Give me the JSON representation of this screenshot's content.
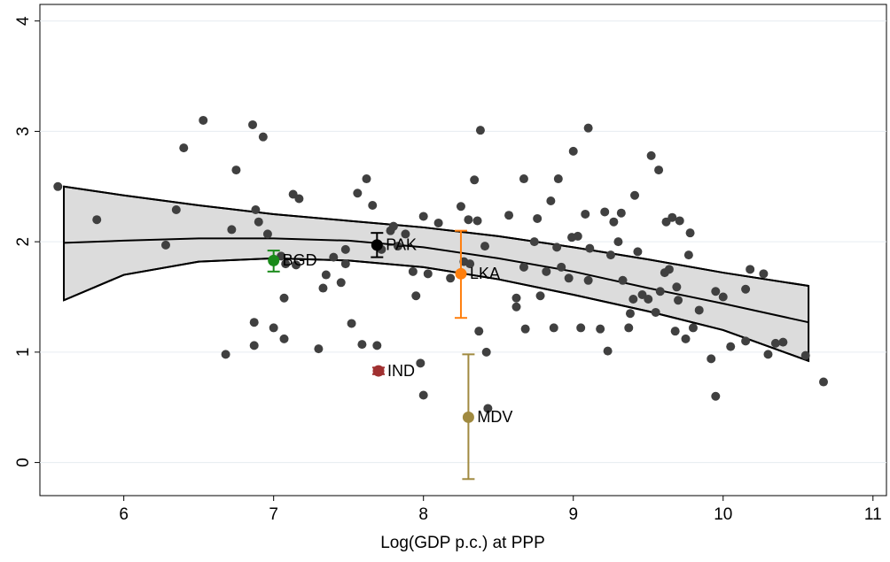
{
  "chart_data": {
    "type": "scatter",
    "xlabel": "Log(GDP p.c.) at PPP",
    "xlim": [
      5.44,
      11.09
    ],
    "ylim": [
      -0.3,
      4.15
    ],
    "xticks": [
      6,
      7,
      8,
      9,
      10,
      11
    ],
    "yticks": [
      0,
      1,
      2,
      3,
      4
    ],
    "grid": true,
    "points": {
      "color": "#404040",
      "x": [
        5.56,
        5.82,
        6.28,
        6.35,
        6.4,
        6.53,
        6.68,
        6.72,
        6.75,
        6.86,
        6.87,
        6.87,
        6.88,
        6.9,
        6.93,
        6.96,
        7.0,
        7.05,
        7.07,
        7.07,
        7.08,
        7.13,
        7.17,
        7.15,
        7.3,
        7.33,
        7.35,
        7.4,
        7.45,
        7.48,
        7.48,
        7.52,
        7.56,
        7.59,
        7.62,
        7.69,
        7.66,
        7.72,
        7.78,
        7.8,
        7.83,
        7.88,
        7.93,
        7.95,
        7.98,
        8.0,
        8.0,
        8.03,
        8.1,
        8.18,
        8.25,
        8.27,
        8.3,
        8.31,
        8.34,
        8.36,
        8.37,
        8.38,
        8.41,
        8.42,
        8.43,
        8.57,
        8.62,
        8.62,
        8.67,
        8.68,
        8.67,
        8.74,
        8.76,
        8.78,
        8.82,
        8.85,
        8.87,
        8.89,
        8.9,
        8.92,
        8.97,
        8.99,
        9.0,
        9.03,
        9.05,
        9.08,
        9.1,
        9.1,
        9.11,
        9.18,
        9.21,
        9.23,
        9.25,
        9.27,
        9.3,
        9.32,
        9.33,
        9.37,
        9.38,
        9.4,
        9.41,
        9.43,
        9.46,
        9.5,
        9.52,
        9.55,
        9.57,
        9.58,
        9.61,
        9.62,
        9.64,
        9.66,
        9.68,
        9.69,
        9.7,
        9.71,
        9.75,
        9.77,
        9.78,
        9.8,
        9.84,
        9.92,
        9.95,
        9.95,
        10.0,
        10.05,
        10.15,
        10.15,
        10.18,
        10.27,
        10.3,
        10.35,
        10.4,
        10.55,
        10.67
      ],
      "y": [
        2.5,
        2.2,
        1.97,
        2.29,
        2.85,
        3.1,
        0.98,
        2.11,
        2.65,
        3.06,
        1.27,
        1.06,
        2.29,
        2.18,
        2.95,
        2.07,
        1.22,
        1.87,
        1.12,
        1.49,
        1.8,
        2.43,
        2.39,
        1.79,
        1.03,
        1.58,
        1.7,
        1.86,
        1.63,
        1.8,
        1.93,
        1.26,
        2.44,
        1.07,
        2.57,
        1.06,
        2.33,
        1.93,
        2.1,
        2.14,
        1.96,
        2.07,
        1.73,
        1.51,
        0.9,
        0.61,
        2.23,
        1.71,
        2.17,
        1.67,
        2.32,
        1.82,
        2.2,
        1.8,
        2.56,
        2.19,
        1.19,
        3.01,
        1.96,
        1.0,
        0.49,
        2.24,
        1.41,
        1.49,
        2.57,
        1.21,
        1.77,
        2.0,
        2.21,
        1.51,
        1.73,
        2.37,
        1.22,
        1.95,
        2.57,
        1.77,
        1.67,
        2.04,
        2.82,
        2.05,
        1.22,
        2.25,
        1.65,
        3.03,
        1.94,
        1.21,
        2.27,
        1.01,
        1.88,
        2.18,
        2.0,
        2.26,
        1.65,
        1.22,
        1.35,
        1.48,
        2.42,
        1.91,
        1.52,
        1.48,
        2.78,
        1.36,
        2.65,
        1.55,
        1.72,
        2.18,
        1.75,
        2.22,
        1.19,
        1.59,
        1.47,
        2.19,
        1.12,
        1.88,
        2.08,
        1.22,
        1.38,
        0.94,
        1.55,
        0.6,
        1.5,
        1.05,
        1.1,
        1.57,
        1.75,
        1.71,
        0.98,
        1.08,
        1.09,
        0.97,
        0.73
      ]
    },
    "band": {
      "x": [
        5.6,
        6,
        6.5,
        7,
        7.5,
        8,
        8.5,
        9,
        9.5,
        10,
        10.57
      ],
      "upper": [
        2.5,
        2.42,
        2.33,
        2.25,
        2.19,
        2.13,
        2.05,
        1.95,
        1.84,
        1.72,
        1.6
      ],
      "fit": [
        1.99,
        2.01,
        2.03,
        2.03,
        2.01,
        1.95,
        1.85,
        1.73,
        1.58,
        1.44,
        1.27
      ],
      "lower": [
        1.47,
        1.7,
        1.82,
        1.85,
        1.83,
        1.77,
        1.66,
        1.52,
        1.37,
        1.2,
        0.92
      ]
    },
    "highlights": [
      {
        "name": "BGD",
        "x": 7.0,
        "y": 1.83,
        "low": 1.73,
        "high": 1.92,
        "color": "#1a8a1a"
      },
      {
        "name": "PAK",
        "x": 7.69,
        "y": 1.97,
        "low": 1.86,
        "high": 2.08,
        "color": "#000000"
      },
      {
        "name": "IND",
        "x": 7.7,
        "y": 0.83,
        "low": 0.8,
        "high": 0.86,
        "color": "#a03030"
      },
      {
        "name": "LKA",
        "x": 8.25,
        "y": 1.71,
        "low": 1.31,
        "high": 2.1,
        "color": "#ff7f0e"
      },
      {
        "name": "MDV",
        "x": 8.3,
        "y": 0.41,
        "low": -0.15,
        "high": 0.98,
        "color": "#a08a40"
      }
    ]
  }
}
